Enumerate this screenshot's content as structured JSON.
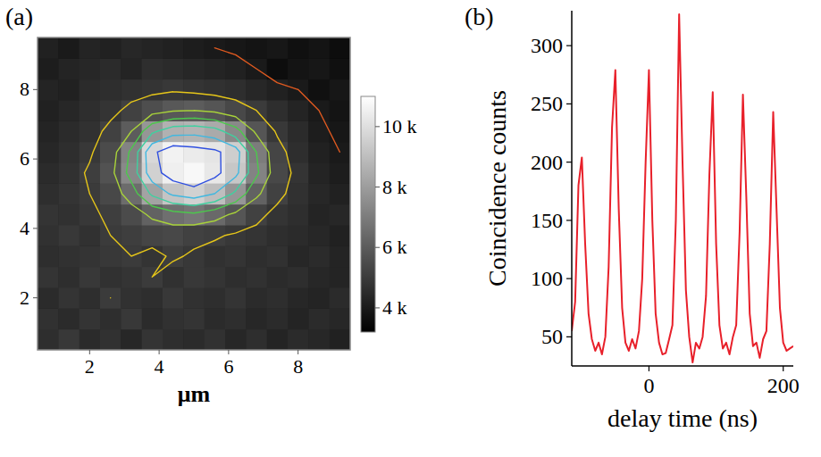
{
  "chart_data": [
    {
      "type": "heatmap",
      "panel": "(a)",
      "xlabel": "μm",
      "xlim": [
        0.5,
        9.5
      ],
      "ylim": [
        0.5,
        9.5
      ],
      "xticks": [
        2,
        4,
        6,
        8
      ],
      "yticks": [
        2,
        4,
        6,
        8
      ],
      "grid": false,
      "x": [
        0.8,
        1.4,
        2.0,
        2.6,
        3.2,
        3.8,
        4.4,
        5.0,
        5.6,
        6.2,
        6.8,
        7.4,
        8.0,
        8.6,
        9.2
      ],
      "y": [
        0.8,
        1.4,
        2.0,
        2.6,
        3.2,
        3.8,
        4.4,
        5.0,
        5.6,
        6.2,
        6.8,
        7.4,
        8.0,
        8.6,
        9.2
      ],
      "z": [
        [
          4600,
          4900,
          4500,
          4700,
          4400,
          4800,
          4600,
          4500,
          4700,
          4400,
          4600,
          4300,
          4500,
          4400,
          4200
        ],
        [
          4700,
          4500,
          4800,
          4600,
          4900,
          4500,
          4700,
          4800,
          4500,
          4600,
          4400,
          4500,
          4300,
          4500,
          4400
        ],
        [
          4500,
          4800,
          4600,
          5000,
          4700,
          4600,
          4900,
          4700,
          4600,
          4800,
          4500,
          4600,
          4400,
          4300,
          4500
        ],
        [
          4800,
          4600,
          4900,
          4700,
          4800,
          5000,
          4700,
          4900,
          4800,
          4600,
          4700,
          4500,
          4600,
          4400,
          4300
        ],
        [
          4600,
          4700,
          4800,
          4900,
          5000,
          4800,
          5100,
          4900,
          4700,
          4800,
          4600,
          4700,
          4400,
          4500,
          4300
        ],
        [
          4700,
          4900,
          4700,
          5000,
          5100,
          5300,
          5400,
          5200,
          5100,
          4900,
          4800,
          4600,
          4500,
          4400,
          4200
        ],
        [
          4800,
          4700,
          4900,
          5100,
          5500,
          6200,
          6600,
          6800,
          6400,
          5800,
          5200,
          4800,
          4600,
          4300,
          4400
        ],
        [
          4600,
          4800,
          5000,
          5400,
          6500,
          8200,
          9200,
          9600,
          9000,
          7800,
          6200,
          5200,
          4700,
          4400,
          4200
        ],
        [
          4500,
          4700,
          5100,
          5700,
          7400,
          9600,
          10500,
          10800,
          10300,
          9300,
          7200,
          5400,
          4800,
          4300,
          4100
        ],
        [
          4400,
          4600,
          4900,
          5500,
          7200,
          9800,
          10600,
          10400,
          10200,
          9500,
          7000,
          5300,
          4600,
          4200,
          4000
        ],
        [
          4300,
          4500,
          4700,
          5200,
          6000,
          7800,
          8600,
          8700,
          8400,
          7400,
          5800,
          4900,
          4500,
          4100,
          3900
        ],
        [
          4200,
          4400,
          4600,
          4800,
          5200,
          5600,
          5900,
          6000,
          5800,
          5400,
          5000,
          4600,
          4300,
          4000,
          3800
        ],
        [
          4300,
          4200,
          4500,
          4600,
          4700,
          4800,
          4900,
          4800,
          4700,
          4600,
          4400,
          4200,
          4000,
          3700,
          3900
        ],
        [
          4100,
          4300,
          4400,
          4500,
          4300,
          4600,
          4500,
          4400,
          4300,
          4200,
          4000,
          3600,
          3800,
          3900,
          3700
        ],
        [
          4200,
          4000,
          4300,
          4200,
          4400,
          4300,
          4200,
          4100,
          4000,
          3900,
          3800,
          3900,
          3700,
          3800,
          3600
        ]
      ],
      "colorbar": {
        "lim": [
          3200,
          11000
        ],
        "ticks": [
          {
            "value": 4000,
            "label": "4 k"
          },
          {
            "value": 6000,
            "label": "6 k"
          },
          {
            "value": 8000,
            "label": "8 k"
          },
          {
            "value": 10000,
            "label": "10 k"
          }
        ]
      },
      "contours": [
        {
          "value": 4000,
          "color": "#e05a20"
        },
        {
          "value": 5000,
          "color": "#e6c619"
        },
        {
          "value": 6000,
          "color": "#a8d23a"
        },
        {
          "value": 7000,
          "color": "#4cc84c"
        },
        {
          "value": 8000,
          "color": "#40d0a0"
        },
        {
          "value": 9000,
          "color": "#40b8e0"
        },
        {
          "value": 10000,
          "color": "#3050e0"
        }
      ]
    },
    {
      "type": "line",
      "panel": "(b)",
      "xlabel": "delay time (ns)",
      "ylabel": "Coincidence counts",
      "color": "#e8202a",
      "grid": false,
      "xlim": [
        -115,
        215
      ],
      "ylim": [
        25,
        330
      ],
      "xticks": [
        0,
        200
      ],
      "yticks": [
        50,
        100,
        150,
        200,
        250,
        300
      ],
      "x": [
        -115,
        -110,
        -105,
        -100,
        -95,
        -90,
        -85,
        -80,
        -75,
        -70,
        -65,
        -60,
        -55,
        -50,
        -45,
        -40,
        -35,
        -30,
        -25,
        -20,
        -15,
        -10,
        -5,
        0,
        5,
        10,
        15,
        20,
        25,
        30,
        35,
        40,
        45,
        50,
        55,
        60,
        65,
        70,
        75,
        80,
        85,
        90,
        95,
        100,
        105,
        110,
        115,
        120,
        125,
        130,
        135,
        140,
        145,
        150,
        155,
        160,
        165,
        170,
        175,
        180,
        185,
        190,
        195,
        200,
        205,
        210,
        215
      ],
      "values": [
        55,
        80,
        180,
        204,
        130,
        70,
        48,
        38,
        45,
        35,
        50,
        110,
        230,
        279,
        160,
        75,
        45,
        38,
        48,
        40,
        55,
        100,
        200,
        279,
        150,
        70,
        45,
        35,
        36,
        48,
        60,
        150,
        327,
        200,
        90,
        50,
        28,
        45,
        40,
        50,
        85,
        190,
        260,
        130,
        60,
        40,
        45,
        35,
        50,
        60,
        140,
        258,
        170,
        70,
        42,
        45,
        32,
        48,
        55,
        130,
        243,
        160,
        75,
        45,
        38,
        40,
        42
      ]
    }
  ]
}
